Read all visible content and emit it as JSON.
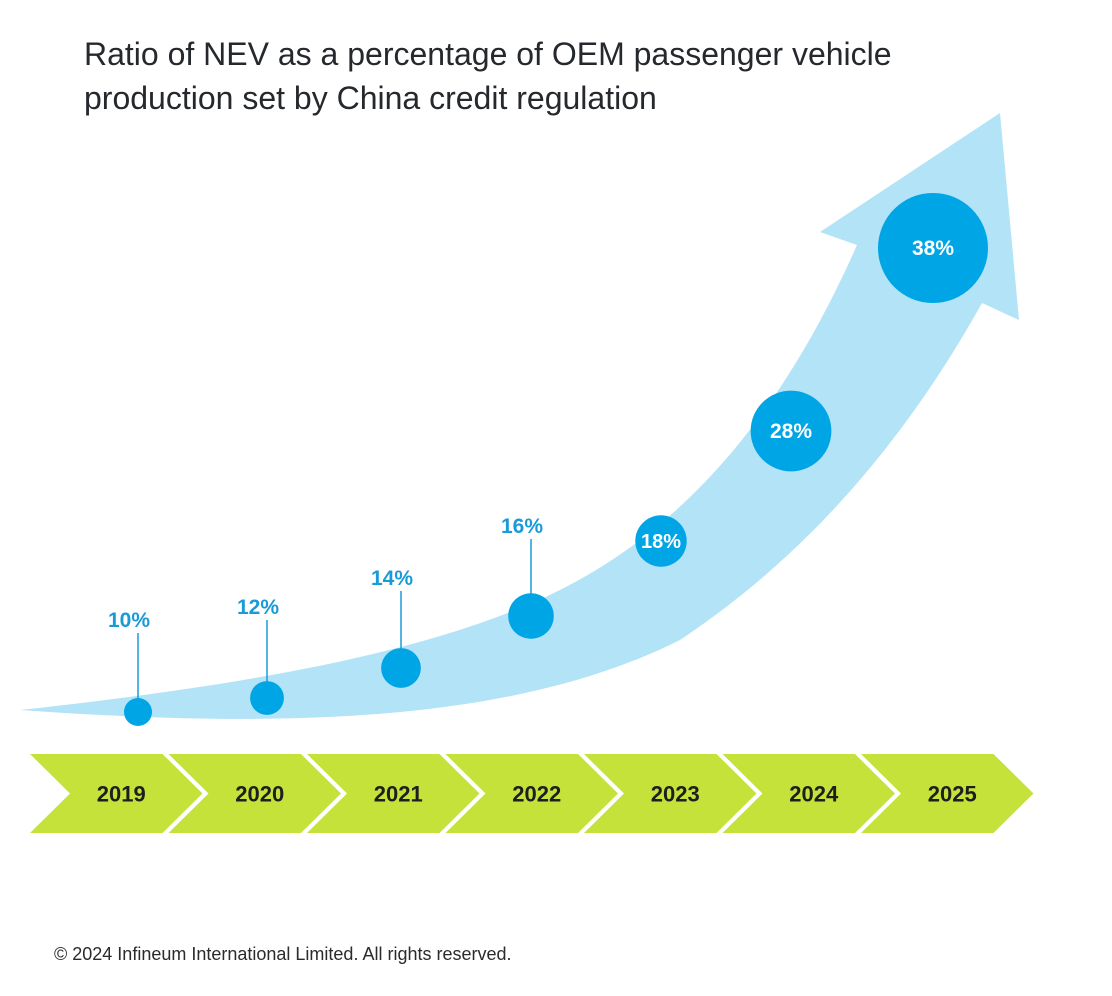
{
  "title": "Ratio of NEV as a percentage of OEM passenger vehicle production set by China credit regulation",
  "footer": "© 2024 Infineum International Limited. All rights reserved.",
  "colors": {
    "arrow": "#b3e3f7",
    "marker": "#00a5e6",
    "label": "#1a9ad8",
    "chevron": "#c5e23a",
    "title": "#25282c"
  },
  "chart_data": {
    "type": "line",
    "title": "Ratio of NEV as a percentage of OEM passenger vehicle production set by China credit regulation",
    "xlabel": "",
    "ylabel": "",
    "categories": [
      "2019",
      "2020",
      "2021",
      "2022",
      "2023",
      "2024",
      "2025"
    ],
    "values": [
      10,
      12,
      14,
      16,
      18,
      28,
      38
    ],
    "labels": [
      "10%",
      "12%",
      "14%",
      "16%",
      "18%",
      "28%",
      "38%"
    ],
    "unit": "%",
    "grid": false,
    "legend": "none"
  }
}
